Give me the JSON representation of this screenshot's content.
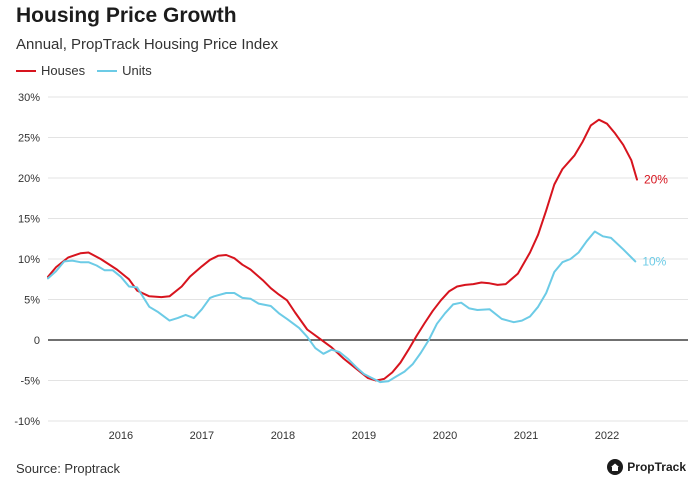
{
  "header": {
    "title": "Housing Price Growth",
    "subtitle": "Annual, PropTrack Housing Price Index"
  },
  "legend": [
    {
      "label": "Houses",
      "color": "#d7141e"
    },
    {
      "label": "Units",
      "color": "#6ccbe6"
    }
  ],
  "footer": {
    "source": "Source: Proptrack",
    "brand": "PropTrack",
    "brand_icon": "home-icon"
  },
  "chart_data": {
    "type": "line",
    "xlim": [
      2015.1,
      2023.0
    ],
    "ylim": [
      -10,
      30
    ],
    "y_ticks": [
      -10,
      -5,
      0,
      5,
      10,
      15,
      20,
      25,
      30
    ],
    "y_tick_labels": [
      "-10%",
      "-5%",
      "0",
      "5%",
      "10%",
      "15%",
      "20%",
      "25%",
      "30%"
    ],
    "x_ticks": [
      2016,
      2017,
      2018,
      2019,
      2020,
      2021,
      2022
    ],
    "x_tick_labels": [
      "2016",
      "2017",
      "2018",
      "2019",
      "2020",
      "2021",
      "2022"
    ],
    "grid": "horizontal",
    "legend_position": "top-left",
    "series": [
      {
        "name": "Houses",
        "color": "#d7141e",
        "end_label": "20%",
        "points": [
          [
            2015.1,
            7.8
          ],
          [
            2015.2,
            9.0
          ],
          [
            2015.35,
            10.2
          ],
          [
            2015.5,
            10.7
          ],
          [
            2015.6,
            10.8
          ],
          [
            2015.75,
            10.0
          ],
          [
            2015.95,
            8.7
          ],
          [
            2016.1,
            7.5
          ],
          [
            2016.2,
            6.1
          ],
          [
            2016.35,
            5.4
          ],
          [
            2016.5,
            5.3
          ],
          [
            2016.6,
            5.4
          ],
          [
            2016.75,
            6.6
          ],
          [
            2016.85,
            7.8
          ],
          [
            2017.0,
            9.1
          ],
          [
            2017.1,
            9.9
          ],
          [
            2017.2,
            10.4
          ],
          [
            2017.3,
            10.5
          ],
          [
            2017.4,
            10.1
          ],
          [
            2017.5,
            9.3
          ],
          [
            2017.6,
            8.7
          ],
          [
            2017.75,
            7.4
          ],
          [
            2017.85,
            6.4
          ],
          [
            2017.95,
            5.6
          ],
          [
            2018.05,
            4.9
          ],
          [
            2018.15,
            3.4
          ],
          [
            2018.3,
            1.3
          ],
          [
            2018.45,
            0.2
          ],
          [
            2018.6,
            -0.9
          ],
          [
            2018.75,
            -2.3
          ],
          [
            2018.9,
            -3.5
          ],
          [
            2019.05,
            -4.7
          ],
          [
            2019.15,
            -5.0
          ],
          [
            2019.25,
            -4.8
          ],
          [
            2019.35,
            -4.0
          ],
          [
            2019.45,
            -2.8
          ],
          [
            2019.55,
            -1.2
          ],
          [
            2019.65,
            0.5
          ],
          [
            2019.75,
            2.1
          ],
          [
            2019.85,
            3.6
          ],
          [
            2019.95,
            4.9
          ],
          [
            2020.05,
            6.0
          ],
          [
            2020.15,
            6.6
          ],
          [
            2020.25,
            6.8
          ],
          [
            2020.35,
            6.9
          ],
          [
            2020.45,
            7.1
          ],
          [
            2020.55,
            7.0
          ],
          [
            2020.65,
            6.8
          ],
          [
            2020.75,
            6.9
          ],
          [
            2020.9,
            8.2
          ],
          [
            2021.05,
            10.8
          ],
          [
            2021.15,
            13.0
          ],
          [
            2021.25,
            16.0
          ],
          [
            2021.35,
            19.2
          ],
          [
            2021.45,
            21.1
          ],
          [
            2021.6,
            22.8
          ],
          [
            2021.7,
            24.5
          ],
          [
            2021.8,
            26.5
          ],
          [
            2021.9,
            27.2
          ],
          [
            2022.0,
            26.7
          ],
          [
            2022.1,
            25.5
          ],
          [
            2022.2,
            24.1
          ],
          [
            2022.3,
            22.2
          ],
          [
            2022.37,
            19.8
          ]
        ]
      },
      {
        "name": "Units",
        "color": "#6ccbe6",
        "end_label": "10%",
        "points": [
          [
            2015.1,
            7.6
          ],
          [
            2015.2,
            8.5
          ],
          [
            2015.3,
            9.7
          ],
          [
            2015.4,
            9.8
          ],
          [
            2015.5,
            9.6
          ],
          [
            2015.6,
            9.6
          ],
          [
            2015.7,
            9.2
          ],
          [
            2015.8,
            8.6
          ],
          [
            2015.9,
            8.6
          ],
          [
            2016.0,
            7.8
          ],
          [
            2016.1,
            6.6
          ],
          [
            2016.2,
            6.5
          ],
          [
            2016.35,
            4.1
          ],
          [
            2016.45,
            3.5
          ],
          [
            2016.6,
            2.4
          ],
          [
            2016.7,
            2.7
          ],
          [
            2016.8,
            3.1
          ],
          [
            2016.9,
            2.7
          ],
          [
            2017.0,
            3.8
          ],
          [
            2017.1,
            5.2
          ],
          [
            2017.15,
            5.4
          ],
          [
            2017.3,
            5.8
          ],
          [
            2017.4,
            5.8
          ],
          [
            2017.5,
            5.2
          ],
          [
            2017.6,
            5.1
          ],
          [
            2017.7,
            4.5
          ],
          [
            2017.85,
            4.2
          ],
          [
            2017.95,
            3.3
          ],
          [
            2018.05,
            2.6
          ],
          [
            2018.2,
            1.5
          ],
          [
            2018.3,
            0.4
          ],
          [
            2018.4,
            -1.0
          ],
          [
            2018.5,
            -1.7
          ],
          [
            2018.6,
            -1.2
          ],
          [
            2018.7,
            -1.5
          ],
          [
            2018.8,
            -2.3
          ],
          [
            2018.9,
            -3.3
          ],
          [
            2019.0,
            -4.2
          ],
          [
            2019.1,
            -4.7
          ],
          [
            2019.2,
            -5.2
          ],
          [
            2019.3,
            -5.1
          ],
          [
            2019.4,
            -4.5
          ],
          [
            2019.5,
            -3.9
          ],
          [
            2019.6,
            -3.0
          ],
          [
            2019.7,
            -1.6
          ],
          [
            2019.8,
            0.0
          ],
          [
            2019.9,
            2.0
          ],
          [
            2020.0,
            3.3
          ],
          [
            2020.1,
            4.4
          ],
          [
            2020.2,
            4.6
          ],
          [
            2020.3,
            3.9
          ],
          [
            2020.4,
            3.7
          ],
          [
            2020.55,
            3.8
          ],
          [
            2020.7,
            2.6
          ],
          [
            2020.85,
            2.2
          ],
          [
            2020.95,
            2.4
          ],
          [
            2021.05,
            2.9
          ],
          [
            2021.15,
            4.1
          ],
          [
            2021.25,
            5.8
          ],
          [
            2021.35,
            8.4
          ],
          [
            2021.45,
            9.6
          ],
          [
            2021.55,
            10.0
          ],
          [
            2021.65,
            10.8
          ],
          [
            2021.75,
            12.2
          ],
          [
            2021.85,
            13.4
          ],
          [
            2021.95,
            12.8
          ],
          [
            2022.05,
            12.6
          ],
          [
            2022.2,
            11.2
          ],
          [
            2022.35,
            9.7
          ]
        ]
      }
    ]
  }
}
